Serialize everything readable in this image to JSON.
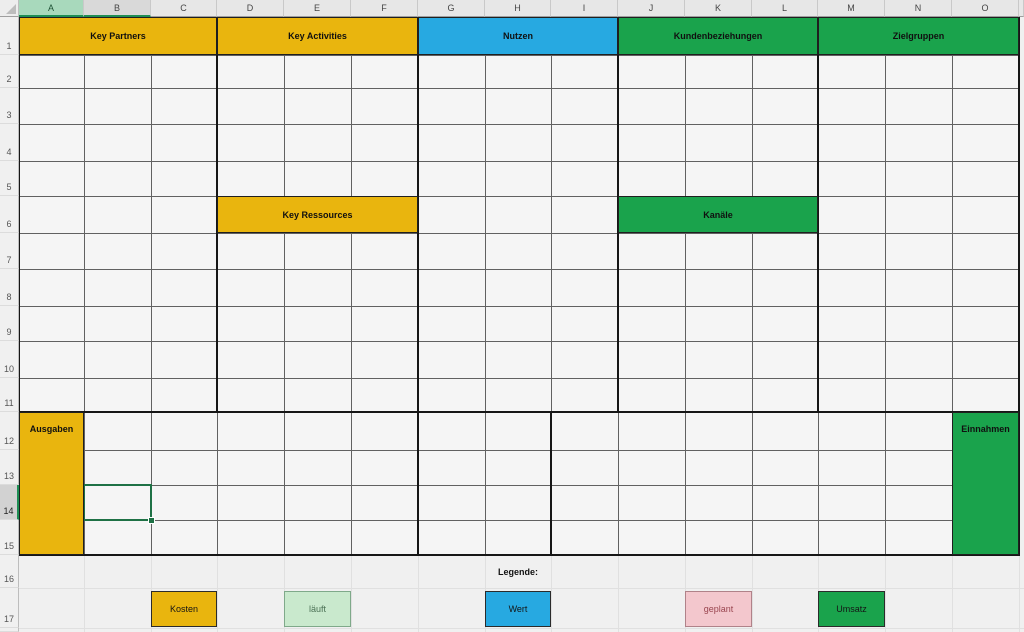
{
  "columns": [
    "A",
    "B",
    "C",
    "D",
    "E",
    "F",
    "G",
    "H",
    "I",
    "J",
    "K",
    "L",
    "M",
    "N",
    "O"
  ],
  "rows": [
    "1",
    "2",
    "3",
    "4",
    "5",
    "6",
    "7",
    "8",
    "9",
    "10",
    "11",
    "12",
    "13",
    "14",
    "15",
    "16",
    "17"
  ],
  "selection": {
    "active_cell": "B14",
    "highlighted_column_header": "A",
    "underlined_column_header": "B",
    "highlighted_row_header": "14"
  },
  "colors": {
    "yellow": "#E9B50E",
    "blue": "#27A9E1",
    "green": "#1AA34C",
    "light_green": "#C9E9CD",
    "pink": "#F3C7CD",
    "selection_green": "#1E7145",
    "header_highlight_green": "#A8D9BC"
  },
  "blocks": [
    {
      "name": "key-partners",
      "label": "Key Partners",
      "range": "A1:C1",
      "fill": "yellow",
      "align": "center"
    },
    {
      "name": "key-activities",
      "label": "Key Activities",
      "range": "D1:F1",
      "fill": "yellow",
      "align": "center"
    },
    {
      "name": "nutzen",
      "label": "Nutzen",
      "range": "G1:I1",
      "fill": "blue",
      "align": "center"
    },
    {
      "name": "kundenbeziehungen",
      "label": "Kundenbeziehungen",
      "range": "J1:L1",
      "fill": "green",
      "align": "center"
    },
    {
      "name": "zielgruppen",
      "label": "Zielgruppen",
      "range": "M1:O1",
      "fill": "green",
      "align": "center"
    },
    {
      "name": "key-ressources",
      "label": "Key Ressources",
      "range": "D6:F6",
      "fill": "yellow",
      "align": "center"
    },
    {
      "name": "kanaele",
      "label": "Kanäle",
      "range": "J6:L6",
      "fill": "green",
      "align": "center"
    },
    {
      "name": "ausgaben",
      "label": "Ausgaben",
      "range": "A12:A15",
      "fill": "yellow",
      "align": "top"
    },
    {
      "name": "einnahmen",
      "label": "Einnahmen",
      "range": "O12:O15",
      "fill": "green",
      "align": "top"
    }
  ],
  "legend": {
    "title": "Legende:",
    "title_cell": "H16",
    "items": [
      {
        "name": "kosten",
        "label": "Kosten",
        "cell": "C17",
        "fill": "yellow",
        "text_color": "#151515",
        "border_color": "#2B2B2B"
      },
      {
        "name": "laeuft",
        "label": "läuft",
        "cell": "E17",
        "fill": "light_green",
        "text_color": "#4C7256",
        "border_color": "#7FA98A"
      },
      {
        "name": "wert",
        "label": "Wert",
        "cell": "H17",
        "fill": "blue",
        "text_color": "#151515",
        "border_color": "#2B2B2B"
      },
      {
        "name": "geplant",
        "label": "geplant",
        "cell": "K17",
        "fill": "pink",
        "text_color": "#9A4650",
        "border_color": "#B08289"
      },
      {
        "name": "umsatz",
        "label": "Umsatz",
        "cell": "M17",
        "fill": "green",
        "text_color": "#151515",
        "border_color": "#2B2B2B"
      }
    ]
  }
}
